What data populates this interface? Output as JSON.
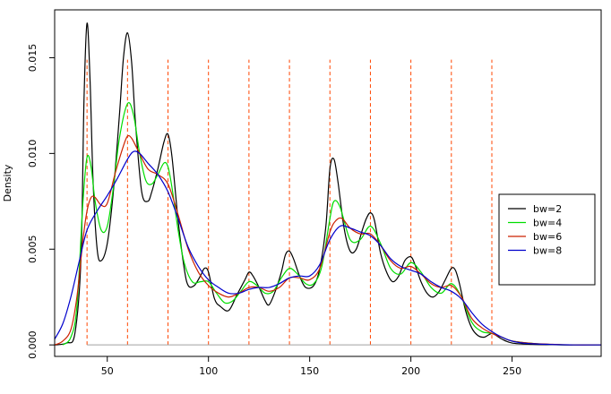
{
  "chart_data": {
    "type": "line",
    "title": "",
    "xlabel": "",
    "ylabel": "Density",
    "xlim": [
      24,
      294
    ],
    "ylim": [
      -0.0006,
      0.0175
    ],
    "xticks": [
      50,
      100,
      150,
      200,
      250
    ],
    "yticks": [
      0.0,
      0.005,
      0.01,
      0.015
    ],
    "ytick_labels": [
      "0.000",
      "0.005",
      "0.010",
      "0.015"
    ],
    "grid": false,
    "baseline": {
      "y": 0,
      "color": "#a0a0a0"
    },
    "reference_lines": {
      "x": [
        40,
        60,
        80,
        100,
        120,
        140,
        160,
        180,
        200,
        220,
        240
      ],
      "ymax": 0.0149,
      "color": "#ff4500",
      "style": "dashed"
    },
    "legend": {
      "position": "right",
      "entries": [
        "bw=2",
        "bw=4",
        "bw=6",
        "bw=8"
      ]
    },
    "series": [
      {
        "name": "bw=2",
        "color": "#000000",
        "x": [
          24,
          30,
          34,
          37,
          38.5,
          40,
          41.5,
          43,
          45,
          47,
          50,
          53,
          56,
          58,
          60,
          62,
          64,
          67,
          70,
          72,
          75,
          78,
          80,
          82,
          85,
          88,
          90,
          93,
          96,
          98,
          100,
          103,
          106,
          110,
          114,
          118,
          120,
          122,
          125,
          128,
          130,
          133,
          136,
          138,
          140,
          142,
          145,
          148,
          152,
          155,
          158,
          160,
          162,
          164,
          167,
          170,
          173,
          176,
          178,
          180,
          182,
          185,
          188,
          191,
          194,
          197,
          200,
          202,
          205,
          208,
          211,
          214,
          217,
          220,
          222,
          224,
          227,
          230,
          233,
          236,
          238,
          240,
          242,
          245,
          250,
          260,
          270,
          280
        ],
        "values": [
          0.0,
          0.0001,
          0.0006,
          0.0045,
          0.0128,
          0.0168,
          0.0138,
          0.0085,
          0.005,
          0.0044,
          0.0053,
          0.008,
          0.012,
          0.015,
          0.0163,
          0.0148,
          0.0115,
          0.008,
          0.0075,
          0.008,
          0.0092,
          0.0106,
          0.011,
          0.0098,
          0.0065,
          0.004,
          0.0031,
          0.0031,
          0.0036,
          0.004,
          0.0038,
          0.0024,
          0.002,
          0.0018,
          0.0026,
          0.0034,
          0.0038,
          0.0036,
          0.003,
          0.0023,
          0.0021,
          0.0028,
          0.0038,
          0.0047,
          0.0049,
          0.0045,
          0.0036,
          0.003,
          0.0031,
          0.004,
          0.0062,
          0.0092,
          0.0097,
          0.0085,
          0.0061,
          0.0049,
          0.005,
          0.006,
          0.0066,
          0.0069,
          0.0065,
          0.0048,
          0.0038,
          0.0033,
          0.0036,
          0.0044,
          0.0046,
          0.0042,
          0.0033,
          0.0027,
          0.0025,
          0.0028,
          0.0034,
          0.004,
          0.0039,
          0.0032,
          0.0018,
          0.0009,
          0.0005,
          0.0004,
          0.0005,
          0.0006,
          0.0005,
          0.0003,
          0.0001,
          3e-05,
          1e-05,
          0.0
        ]
      },
      {
        "name": "bw=4",
        "color": "#00dd00",
        "x": [
          28,
          32,
          35,
          38,
          40,
          42,
          44,
          47,
          50,
          53,
          56,
          60,
          63,
          66,
          69,
          72,
          75,
          78,
          80,
          82,
          85,
          88,
          92,
          96,
          100,
          104,
          108,
          112,
          116,
          120,
          124,
          128,
          132,
          136,
          140,
          144,
          148,
          152,
          156,
          160,
          162,
          165,
          170,
          175,
          180,
          185,
          190,
          195,
          200,
          205,
          210,
          215,
          220,
          225,
          230,
          235,
          240,
          245,
          250,
          260,
          270,
          280,
          294
        ],
        "values": [
          0.0,
          0.0004,
          0.002,
          0.0075,
          0.0098,
          0.0093,
          0.0075,
          0.006,
          0.0062,
          0.0082,
          0.0108,
          0.0126,
          0.012,
          0.01,
          0.0086,
          0.0084,
          0.0089,
          0.0095,
          0.0093,
          0.0082,
          0.006,
          0.0043,
          0.0033,
          0.0033,
          0.0033,
          0.0027,
          0.0022,
          0.0023,
          0.0028,
          0.0033,
          0.0031,
          0.0027,
          0.0028,
          0.0035,
          0.004,
          0.0037,
          0.0032,
          0.0032,
          0.0041,
          0.0066,
          0.0075,
          0.0072,
          0.0055,
          0.0055,
          0.0062,
          0.0053,
          0.004,
          0.0037,
          0.0043,
          0.0038,
          0.003,
          0.0027,
          0.0032,
          0.0025,
          0.0012,
          0.0007,
          0.0006,
          0.0004,
          0.0002,
          8e-05,
          2e-05,
          0.0,
          0.0
        ]
      },
      {
        "name": "bw=6",
        "color": "#cc2200",
        "x": [
          24,
          28,
          32,
          35,
          38,
          40,
          42,
          44,
          47,
          50,
          54,
          58,
          60,
          62,
          65,
          70,
          75,
          80,
          85,
          90,
          95,
          100,
          105,
          110,
          115,
          120,
          125,
          130,
          135,
          140,
          145,
          150,
          155,
          160,
          163,
          166,
          170,
          175,
          180,
          185,
          190,
          195,
          200,
          205,
          210,
          215,
          220,
          225,
          230,
          235,
          240,
          245,
          250,
          260,
          270,
          280,
          294
        ],
        "values": [
          0.0,
          0.0002,
          0.0008,
          0.0025,
          0.0055,
          0.007,
          0.0077,
          0.0077,
          0.0073,
          0.0074,
          0.009,
          0.0104,
          0.0109,
          0.0108,
          0.0102,
          0.0092,
          0.0089,
          0.0084,
          0.0068,
          0.005,
          0.0038,
          0.0031,
          0.0027,
          0.0025,
          0.0027,
          0.003,
          0.003,
          0.0028,
          0.003,
          0.0035,
          0.0035,
          0.0034,
          0.004,
          0.0059,
          0.0065,
          0.0066,
          0.0061,
          0.0058,
          0.0058,
          0.0052,
          0.0044,
          0.004,
          0.0041,
          0.0037,
          0.0032,
          0.003,
          0.0031,
          0.0025,
          0.0014,
          0.0009,
          0.0006,
          0.0004,
          0.0002,
          8e-05,
          3e-05,
          0.0,
          0.0
        ]
      },
      {
        "name": "bw=8",
        "color": "#0000cc",
        "x": [
          24,
          28,
          32,
          36,
          40,
          45,
          50,
          55,
          60,
          63,
          66,
          70,
          75,
          80,
          85,
          90,
          95,
          100,
          105,
          110,
          115,
          120,
          125,
          130,
          135,
          140,
          145,
          150,
          155,
          160,
          165,
          170,
          175,
          180,
          185,
          190,
          195,
          200,
          205,
          210,
          215,
          220,
          225,
          230,
          235,
          240,
          245,
          250,
          255,
          260,
          270,
          280,
          294
        ],
        "values": [
          0.0003,
          0.0011,
          0.0025,
          0.0043,
          0.006,
          0.007,
          0.0078,
          0.0087,
          0.0097,
          0.0101,
          0.01,
          0.0095,
          0.0089,
          0.008,
          0.0066,
          0.0051,
          0.0041,
          0.0034,
          0.003,
          0.0027,
          0.0027,
          0.0029,
          0.003,
          0.003,
          0.0032,
          0.0035,
          0.0036,
          0.0036,
          0.0042,
          0.0055,
          0.0062,
          0.0061,
          0.0059,
          0.0057,
          0.0052,
          0.0045,
          0.0041,
          0.0039,
          0.0037,
          0.0033,
          0.003,
          0.0028,
          0.0024,
          0.0017,
          0.0011,
          0.0007,
          0.0004,
          0.0002,
          0.0001,
          6e-05,
          2e-05,
          0.0,
          0.0
        ]
      }
    ]
  }
}
